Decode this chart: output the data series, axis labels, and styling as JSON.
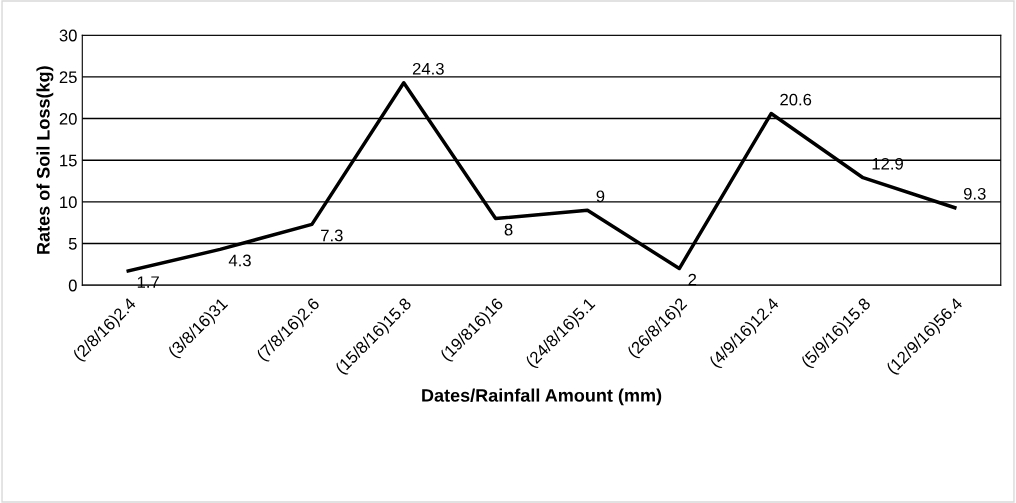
{
  "chart_data": {
    "type": "line",
    "xlabel": "Dates/Rainfall Amount (mm)",
    "ylabel": "Rates of Soil Loss(kg)",
    "categories": [
      "(2/8/16)2.4",
      "(3/8/16)31",
      "(7/8/16)2.6",
      "(15/8/16)15.8",
      "(19/816)16",
      "(24/8/16)5.1",
      "(26/8/16)2",
      "(4/9/16)12.4",
      "(5/9/16)15.8",
      "(12/9/16)56.4"
    ],
    "series": [
      {
        "color": "#000000",
        "values": [
          1.7,
          4.3,
          7.3,
          24.3,
          8,
          9,
          2,
          20.6,
          12.9,
          9.3
        ]
      }
    ],
    "ylim": [
      0,
      30
    ],
    "yticks": [
      0,
      5,
      10,
      15,
      20,
      25,
      30
    ],
    "grid": "y",
    "data_labels": true,
    "marker": "none",
    "line_style": "solid",
    "legend": false
  }
}
